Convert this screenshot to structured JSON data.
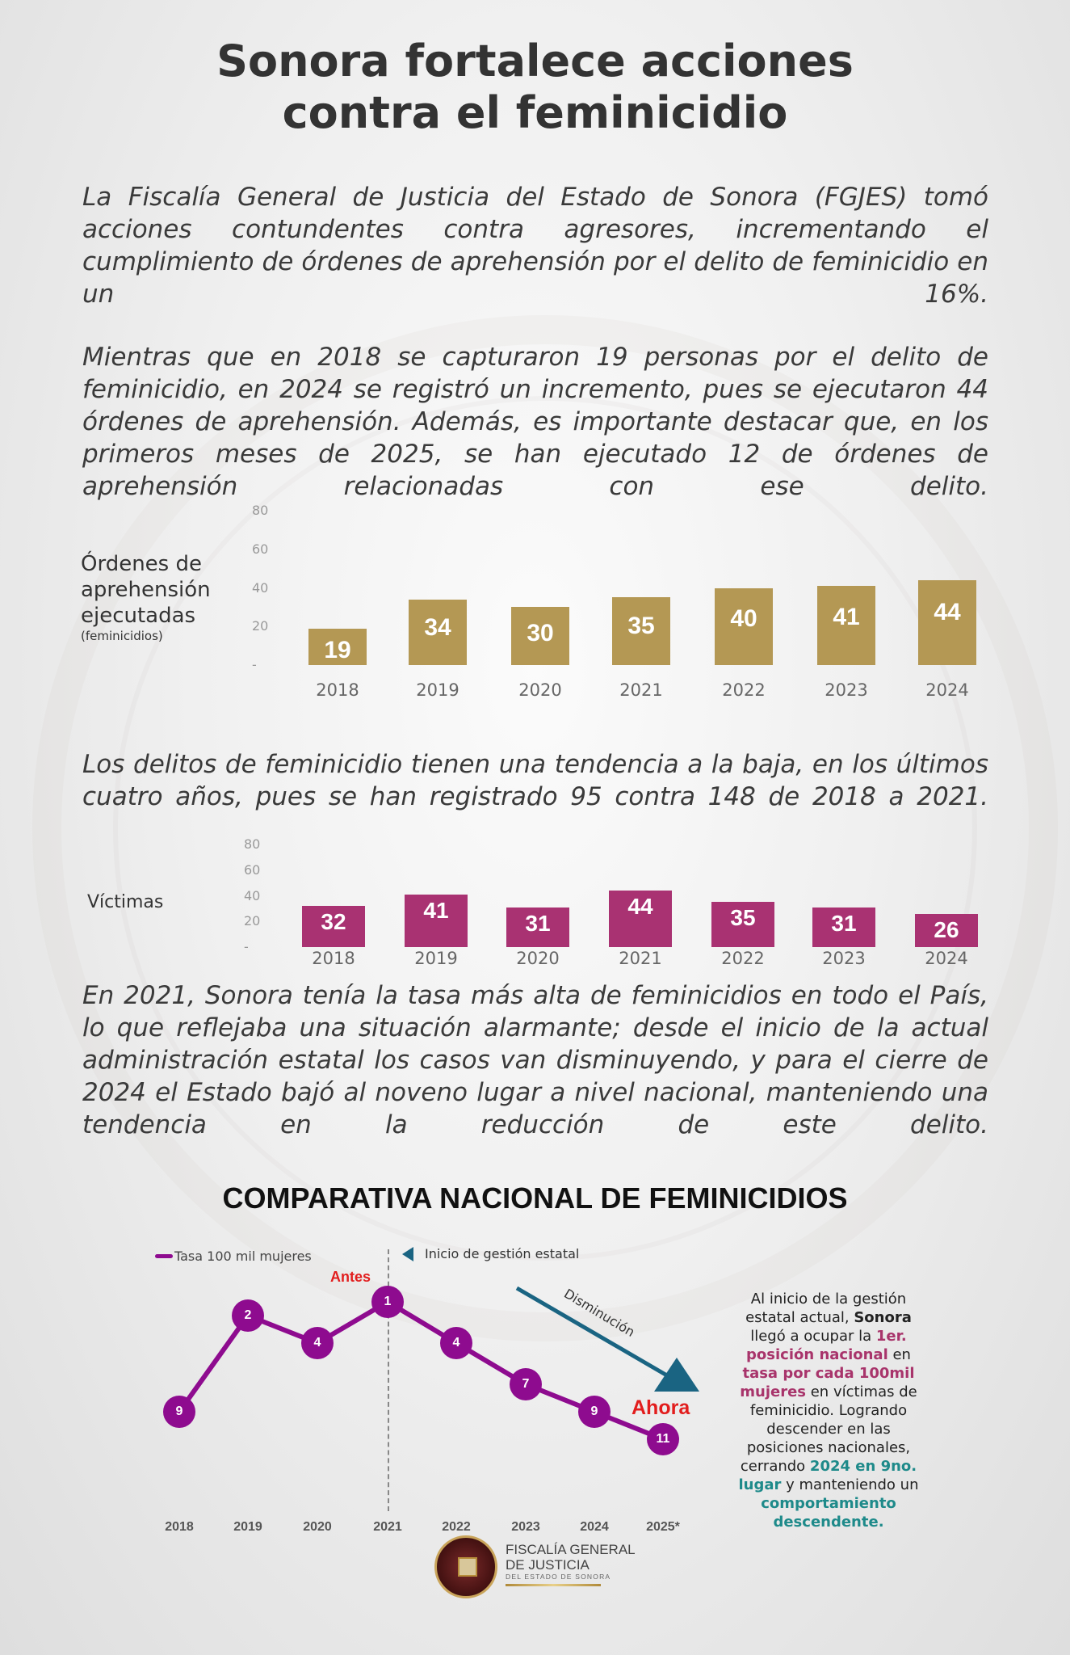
{
  "title": [
    "Sonora fortalece acciones",
    "contra el feminicidio"
  ],
  "paragraphs": [
    "La Fiscalía General de Justicia del Estado de Sonora (FGJES) tomó acciones contundentes contra agresores, incrementando el cumplimiento de órdenes de aprehensión por el delito de feminicidio en un 16%.",
    "Mientras que en 2018 se capturaron 19 personas por el delito de feminicidio, en 2024 se registró un incremento, pues se ejecutaron 44 órdenes de aprehensión. Además, es importante destacar que, en los primeros meses de 2025, se han ejecutado 12 de órdenes de aprehensión relacionadas con ese delito.",
    "Los delitos de feminicidio tienen una tendencia a la baja, en los últimos cuatro años, pues se han registrado 95 contra 148 de 2018 a 2021.",
    "En 2021, Sonora tenía la tasa más alta de feminicidios en todo el País, lo que reflejaba una situación alarmante; desde el inicio de la actual administración estatal los casos van disminuyendo, y para el cierre de 2024 el Estado bajó al noveno lugar a nivel nacional, manteniendo una tendencia en la reducción de este delito."
  ],
  "chart_data": [
    {
      "type": "bar",
      "title": "Órdenes de aprehensión ejecutadas",
      "subtitle": "(feminicidios)",
      "categories": [
        "2018",
        "2019",
        "2020",
        "2021",
        "2022",
        "2023",
        "2024"
      ],
      "values": [
        19,
        34,
        30,
        35,
        40,
        41,
        44
      ],
      "yticks": [
        "-",
        "20",
        "40",
        "60",
        "80"
      ],
      "ylim": [
        0,
        80
      ],
      "color": "#b49854"
    },
    {
      "type": "bar",
      "title": "Víctimas",
      "categories": [
        "2018",
        "2019",
        "2020",
        "2021",
        "2022",
        "2023",
        "2024"
      ],
      "values": [
        32,
        41,
        31,
        44,
        35,
        31,
        26
      ],
      "yticks": [
        "-",
        "20",
        "40",
        "60",
        "80"
      ],
      "ylim": [
        0,
        80
      ],
      "color": "#a93272"
    },
    {
      "type": "line",
      "title": "COMPARATIVA NACIONAL DE FEMINICIDIOS",
      "legend": "Tasa 100 mil mujeres",
      "categories": [
        "2018",
        "2019",
        "2020",
        "2021",
        "2022",
        "2023",
        "2024",
        "2025*"
      ],
      "values": [
        9,
        2,
        4,
        1,
        4,
        7,
        9,
        11
      ],
      "y_inverted": true,
      "color": "#8e0b8f",
      "annotations": {
        "start": "Inicio de gestión estatal",
        "before": "Antes",
        "now": "Ahora",
        "trend": "Disminución"
      }
    }
  ],
  "side_text": {
    "t1": "Al inicio de la gestión estatal actual, ",
    "b1": "Sonora",
    "t2": " llegó a ocupar la ",
    "p1": "1er. posición nacional",
    "t3": " en ",
    "p2": "tasa por cada 100mil mujeres",
    "t4": " en víctimas de feminicidio. Logrando descender en las posiciones nacionales, cerrando ",
    "c1": "2024 en 9no. lugar",
    "t5": " y manteniendo un ",
    "c2": "comportamiento descendente."
  },
  "logo": {
    "line1": "FISCALÍA GENERAL",
    "line2": "DE JUSTICIA",
    "line3": "DEL ESTADO DE SONORA"
  }
}
